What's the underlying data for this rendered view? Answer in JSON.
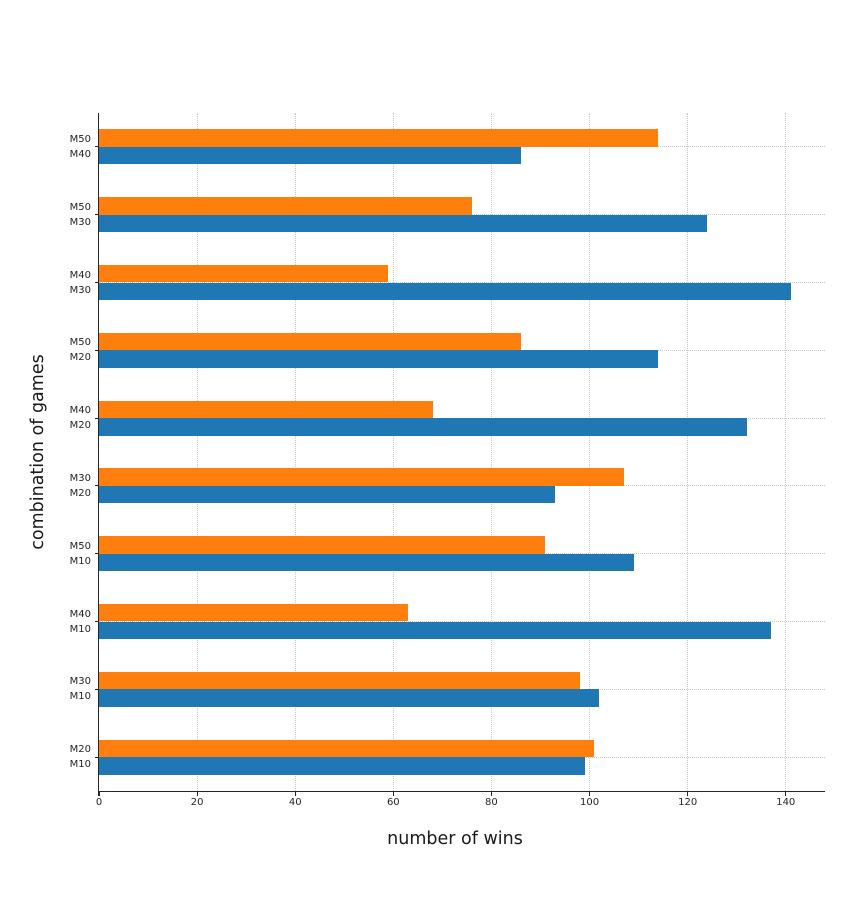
{
  "chart_data": {
    "type": "bar",
    "orientation": "horizontal",
    "title": "",
    "xlabel": "number of wins",
    "ylabel": "combination of games",
    "xlim": [
      0,
      148
    ],
    "x_ticks": [
      0,
      20,
      40,
      60,
      80,
      100,
      120,
      140
    ],
    "grid": "dotted",
    "legend": "none",
    "groups": [
      {
        "labels": [
          "M50",
          "M40"
        ],
        "values": [
          114,
          86
        ]
      },
      {
        "labels": [
          "M50",
          "M30"
        ],
        "values": [
          76,
          124
        ]
      },
      {
        "labels": [
          "M40",
          "M30"
        ],
        "values": [
          59,
          141
        ]
      },
      {
        "labels": [
          "M50",
          "M20"
        ],
        "values": [
          86,
          114
        ]
      },
      {
        "labels": [
          "M40",
          "M20"
        ],
        "values": [
          68,
          132
        ]
      },
      {
        "labels": [
          "M30",
          "M20"
        ],
        "values": [
          107,
          93
        ]
      },
      {
        "labels": [
          "M50",
          "M10"
        ],
        "values": [
          91,
          109
        ]
      },
      {
        "labels": [
          "M40",
          "M10"
        ],
        "values": [
          63,
          137
        ]
      },
      {
        "labels": [
          "M30",
          "M10"
        ],
        "values": [
          98,
          102
        ]
      },
      {
        "labels": [
          "M20",
          "M10"
        ],
        "values": [
          101,
          99
        ]
      }
    ],
    "series_note": "top bar of each pair corresponds to first label (orange), bottom bar to second label (blue)",
    "colors": {
      "top_bar": "#ff7f0e",
      "bottom_bar": "#1f77b4",
      "gridline": "#c9c9c9",
      "axis": "#262626",
      "text": "#1a1a1a"
    }
  }
}
